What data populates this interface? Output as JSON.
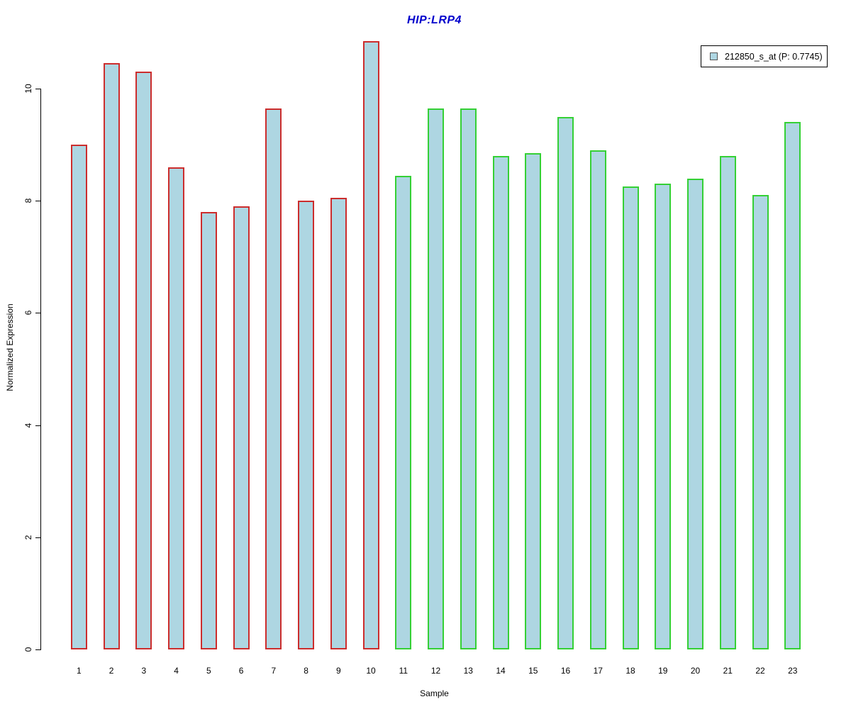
{
  "chart_data": {
    "type": "bar",
    "title": "HIP:LRP4",
    "title_color": "#0000cc",
    "xlabel": "Sample",
    "ylabel": "Normalized Expression",
    "categories": [
      "1",
      "2",
      "3",
      "4",
      "5",
      "6",
      "7",
      "8",
      "9",
      "10",
      "11",
      "12",
      "13",
      "14",
      "15",
      "16",
      "17",
      "18",
      "19",
      "20",
      "21",
      "22",
      "23"
    ],
    "values": [
      9.0,
      10.45,
      10.3,
      8.6,
      7.8,
      7.9,
      9.65,
      8.0,
      8.05,
      10.85,
      8.45,
      9.65,
      9.65,
      8.8,
      8.85,
      9.5,
      8.9,
      8.25,
      8.3,
      8.4,
      8.8,
      8.1,
      9.4
    ],
    "bar_fill": "#aed6e2",
    "bar_border_groups": [
      {
        "from": 1,
        "to": 10,
        "color": "#cc2d2d"
      },
      {
        "from": 11,
        "to": 23,
        "color": "#35d035"
      }
    ],
    "ylim": [
      0,
      11
    ],
    "yticks": [
      0,
      2,
      4,
      6,
      8,
      10
    ],
    "grid": false,
    "legend": {
      "position": "top-right",
      "entries": [
        {
          "label": "212850_s_at (P: 0.7745)",
          "swatch_fill": "#aed6e2",
          "swatch_border": "#555555"
        }
      ]
    }
  }
}
